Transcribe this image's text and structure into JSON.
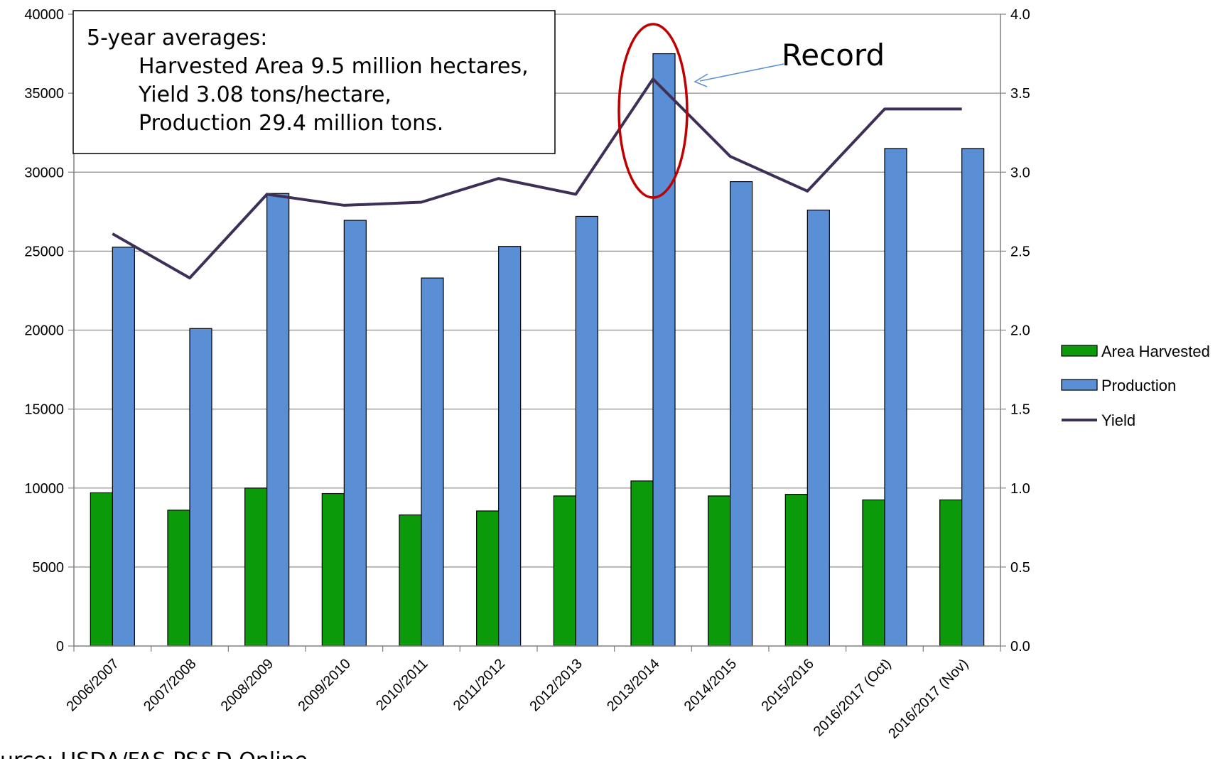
{
  "chart_data": {
    "type": "bar",
    "categories": [
      "2006/2007",
      "2007/2008",
      "2008/2009",
      "2009/2010",
      "2010/2011",
      "2011/2012",
      "2012/2013",
      "2013/2014",
      "2014/2015",
      "2015/2016",
      "2016/2017 (Oct)",
      "2016/2017 (Nov)"
    ],
    "series": [
      {
        "name": "Area Harvested",
        "kind": "bar",
        "axis": "left",
        "color": "#0a9a0a",
        "values": [
          9700,
          8600,
          10000,
          9650,
          8300,
          8550,
          9500,
          10450,
          9500,
          9600,
          9250,
          9250
        ]
      },
      {
        "name": "Production",
        "kind": "bar",
        "axis": "left",
        "color": "#5a8fd6",
        "values": [
          25250,
          20100,
          28650,
          26950,
          23300,
          25300,
          27200,
          37500,
          29400,
          27600,
          31500,
          31500
        ]
      },
      {
        "name": "Yield",
        "kind": "line",
        "axis": "right",
        "color": "#3d2f55",
        "values": [
          2.61,
          2.33,
          2.86,
          2.79,
          2.81,
          2.96,
          2.86,
          3.59,
          3.1,
          2.88,
          3.4,
          3.4
        ]
      }
    ],
    "y_left": {
      "min": 0,
      "max": 40000,
      "ticks": [
        "0",
        "5000",
        "10000",
        "15000",
        "20000",
        "25000",
        "30000",
        "35000",
        "40000"
      ]
    },
    "y_right": {
      "min": 0,
      "max": 4.0,
      "ticks": [
        "0.0",
        "0.5",
        "1.0",
        "1.5",
        "2.0",
        "2.5",
        "3.0",
        "3.5",
        "4.0"
      ]
    },
    "grid": true,
    "legend_position": "right",
    "highlight_category": "2013/2014",
    "highlight_color": "#c00000",
    "annotation_box": {
      "lines": [
        "5-year averages:",
        "Harvested Area 9.5 million hectares,",
        "Yield 3.08 tons/hectare,",
        "Production 29.4 million tons."
      ]
    },
    "record_label": "Record",
    "arrow_color": "#5b8fcf",
    "source": "urce: USDA/FAS PS&D Online"
  }
}
